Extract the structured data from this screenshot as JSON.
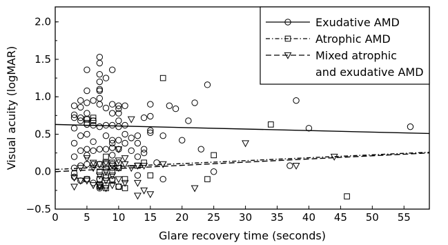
{
  "chart_data": {
    "type": "scatter",
    "title": "",
    "xlabel": "Glare recovery time (seconds)",
    "ylabel": "Visual acuity (logMAR)",
    "xlim": [
      0,
      59
    ],
    "ylim": [
      -0.5,
      2.2
    ],
    "xticks": [
      0,
      5,
      10,
      15,
      20,
      25,
      30,
      35,
      40,
      45,
      50,
      55
    ],
    "yticks": [
      -0.5,
      0.0,
      0.5,
      1.0,
      1.5,
      2.0
    ],
    "ytick_labels": [
      "−0.5",
      "0.0",
      "0.5",
      "1.0",
      "1.5",
      "2.0"
    ],
    "grid": false,
    "legend_position": "top-right",
    "series": [
      {
        "name": "Exudative AMD",
        "marker": "circle",
        "line_style": "solid",
        "fit_line": [
          [
            0,
            0.63
          ],
          [
            59,
            0.51
          ]
        ],
        "points": [
          [
            3,
            0.88
          ],
          [
            3,
            0.76
          ],
          [
            3,
            0.72
          ],
          [
            3,
            0.58
          ],
          [
            3,
            0.38
          ],
          [
            3,
            0.2
          ],
          [
            3,
            0.05
          ],
          [
            3,
            -0.02
          ],
          [
            3,
            -0.07
          ],
          [
            4,
            0.95
          ],
          [
            4,
            0.86
          ],
          [
            4,
            0.72
          ],
          [
            4,
            0.68
          ],
          [
            4,
            0.48
          ],
          [
            4,
            0.28
          ],
          [
            4,
            0.08
          ],
          [
            4,
            -0.12
          ],
          [
            5,
            1.36
          ],
          [
            5,
            1.08
          ],
          [
            5,
            0.92
          ],
          [
            5,
            0.78
          ],
          [
            5,
            0.7
          ],
          [
            5,
            0.63
          ],
          [
            5,
            0.5
          ],
          [
            5,
            0.3
          ],
          [
            5,
            0.22
          ],
          [
            5,
            0.1
          ],
          [
            5,
            -0.1
          ],
          [
            6,
            0.95
          ],
          [
            6,
            0.68
          ],
          [
            6,
            0.62
          ],
          [
            6,
            0.4
          ],
          [
            6,
            0.28
          ],
          [
            6,
            0.1
          ],
          [
            6,
            -0.15
          ],
          [
            7,
            1.53
          ],
          [
            7,
            1.45
          ],
          [
            7,
            1.3
          ],
          [
            7,
            1.1
          ],
          [
            7,
            1.08
          ],
          [
            7,
            0.98
          ],
          [
            7,
            0.9
          ],
          [
            7,
            0.6
          ],
          [
            7,
            0.3
          ],
          [
            7,
            0.1
          ],
          [
            7,
            -0.1
          ],
          [
            7,
            -0.2
          ],
          [
            7,
            -0.22
          ],
          [
            8,
            1.25
          ],
          [
            8,
            0.62
          ],
          [
            8,
            0.48
          ],
          [
            8,
            0.3
          ],
          [
            8,
            0.05
          ],
          [
            8,
            -0.05
          ],
          [
            8,
            -0.18
          ],
          [
            9,
            1.36
          ],
          [
            9,
            0.9
          ],
          [
            9,
            0.78
          ],
          [
            9,
            0.62
          ],
          [
            9,
            0.42
          ],
          [
            9,
            0.38
          ],
          [
            9,
            0.32
          ],
          [
            9,
            0.22
          ],
          [
            9,
            0.1
          ],
          [
            9,
            0.05
          ],
          [
            9,
            -0.1
          ],
          [
            10,
            0.88
          ],
          [
            10,
            0.84
          ],
          [
            10,
            0.78
          ],
          [
            10,
            0.68
          ],
          [
            10,
            0.6
          ],
          [
            10,
            0.42
          ],
          [
            10,
            0.3
          ],
          [
            10,
            0.12
          ],
          [
            10,
            0.05
          ],
          [
            10,
            -0.2
          ],
          [
            11,
            0.88
          ],
          [
            11,
            0.62
          ],
          [
            11,
            0.5
          ],
          [
            11,
            0.38
          ],
          [
            12,
            0.28
          ],
          [
            13,
            0.48
          ],
          [
            13,
            0.38
          ],
          [
            13,
            0.2
          ],
          [
            14,
            0.72
          ],
          [
            14,
            0.3
          ],
          [
            14,
            0.25
          ],
          [
            15,
            0.9
          ],
          [
            15,
            0.74
          ],
          [
            15,
            0.52
          ],
          [
            16,
            0.12
          ],
          [
            17,
            0.48
          ],
          [
            17,
            -0.1
          ],
          [
            18,
            0.88
          ],
          [
            19,
            0.84
          ],
          [
            20,
            0.42
          ],
          [
            21,
            0.68
          ],
          [
            22,
            0.92
          ],
          [
            23,
            0.3
          ],
          [
            24,
            1.16
          ],
          [
            25,
            0.0
          ],
          [
            38,
            0.95
          ],
          [
            37,
            0.08
          ],
          [
            40,
            0.58
          ],
          [
            56,
            0.6
          ],
          [
            7,
            1.2
          ],
          [
            8,
            0.85
          ],
          [
            12,
            0.45
          ],
          [
            13,
            -0.05
          ],
          [
            15,
            0.55
          ]
        ]
      },
      {
        "name": "Atrophic AMD",
        "marker": "square",
        "line_style": "dash-dot",
        "fit_line": [
          [
            0,
            0.03
          ],
          [
            59,
            0.26
          ]
        ],
        "points": [
          [
            5,
            0.7
          ],
          [
            5,
            0.65
          ],
          [
            5,
            -0.1
          ],
          [
            6,
            0.72
          ],
          [
            6,
            0.68
          ],
          [
            7,
            0.0
          ],
          [
            7,
            -0.1
          ],
          [
            7,
            -0.18
          ],
          [
            8,
            0.2
          ],
          [
            8,
            0.1
          ],
          [
            8,
            -0.08
          ],
          [
            8,
            -0.22
          ],
          [
            9,
            0.12
          ],
          [
            9,
            0.0
          ],
          [
            9,
            -0.12
          ],
          [
            10,
            0.05
          ],
          [
            10,
            -0.2
          ],
          [
            10,
            -0.2
          ],
          [
            11,
            -0.1
          ],
          [
            11,
            -0.22
          ],
          [
            13,
            0.08
          ],
          [
            14,
            0.12
          ],
          [
            15,
            -0.05
          ],
          [
            17,
            1.25
          ],
          [
            24,
            -0.1
          ],
          [
            25,
            0.22
          ],
          [
            34,
            0.63
          ],
          [
            46,
            -0.33
          ]
        ]
      },
      {
        "name": "Mixed atrophic\nand exudative AMD",
        "legend_lines": [
          "Mixed atrophic",
          "and exudative AMD"
        ],
        "marker": "triangle-down",
        "line_style": "dashed",
        "fit_line": [
          [
            0,
            0.0
          ],
          [
            59,
            0.25
          ]
        ],
        "points": [
          [
            3,
            -0.2
          ],
          [
            3,
            -0.08
          ],
          [
            4,
            0.05
          ],
          [
            4,
            -0.12
          ],
          [
            5,
            0.18
          ],
          [
            5,
            -0.12
          ],
          [
            6,
            0.12
          ],
          [
            6,
            0.05
          ],
          [
            6,
            -0.18
          ],
          [
            7,
            0.1
          ],
          [
            7,
            -0.05
          ],
          [
            7,
            -0.18
          ],
          [
            7,
            -0.2
          ],
          [
            8,
            0.12
          ],
          [
            8,
            0.0
          ],
          [
            8,
            -0.12
          ],
          [
            8,
            -0.22
          ],
          [
            9,
            0.08
          ],
          [
            9,
            -0.05
          ],
          [
            9,
            -0.18
          ],
          [
            10,
            0.3
          ],
          [
            10,
            0.15
          ],
          [
            10,
            0.05
          ],
          [
            10,
            -0.1
          ],
          [
            11,
            0.18
          ],
          [
            11,
            0.1
          ],
          [
            11,
            -0.15
          ],
          [
            12,
            0.7
          ],
          [
            12,
            0.05
          ],
          [
            13,
            0.08
          ],
          [
            13,
            -0.15
          ],
          [
            13,
            -0.32
          ],
          [
            14,
            0.08
          ],
          [
            14,
            -0.25
          ],
          [
            15,
            -0.3
          ],
          [
            17,
            0.1
          ],
          [
            22,
            -0.22
          ],
          [
            30,
            0.38
          ],
          [
            38,
            0.08
          ],
          [
            44,
            0.2
          ]
        ]
      }
    ]
  }
}
